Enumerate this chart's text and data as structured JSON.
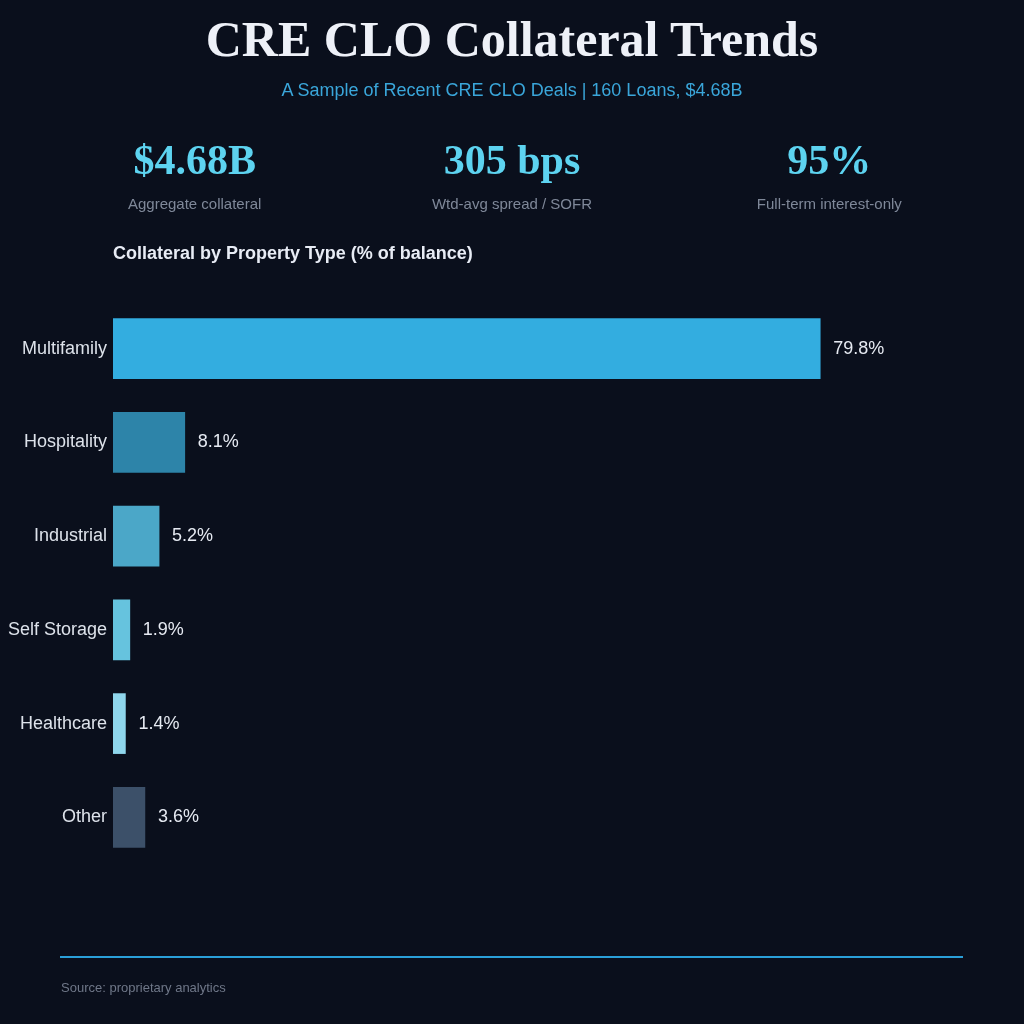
{
  "chart_data": [
    {
      "type": "other",
      "title": "CRE CLO Collateral Trends",
      "subtitle": "A Sample of Recent CRE CLO Deals | 160 Loans, $4.68B",
      "annotations": [
        "$4.68B",
        "Aggregate collateral",
        "305 bps",
        "Wtd-avg spread / SOFR",
        "95%",
        "Full-term interest-only"
      ]
    },
    {
      "type": "bar",
      "orientation": "horizontal",
      "title": "Collateral by Property Type (% of balance)",
      "categories": [
        "Multifamily",
        "Hospitality",
        "Industrial",
        "Self Storage",
        "Healthcare",
        "Other"
      ],
      "values": [
        79.8,
        8.1,
        5.2,
        1.9,
        1.4,
        3.6
      ],
      "colors": [
        "#33ade0",
        "#2d84a9",
        "#4ba7c8",
        "#66c3de",
        "#8fd6ec",
        "#3c5069"
      ],
      "value_labels": [
        "79.8%",
        "8.1%",
        "5.2%",
        "1.9%",
        "1.4%",
        "3.6%"
      ],
      "tick_labels": "y",
      "annotations": [
        "Source: proprietary analytics"
      ]
    }
  ]
}
